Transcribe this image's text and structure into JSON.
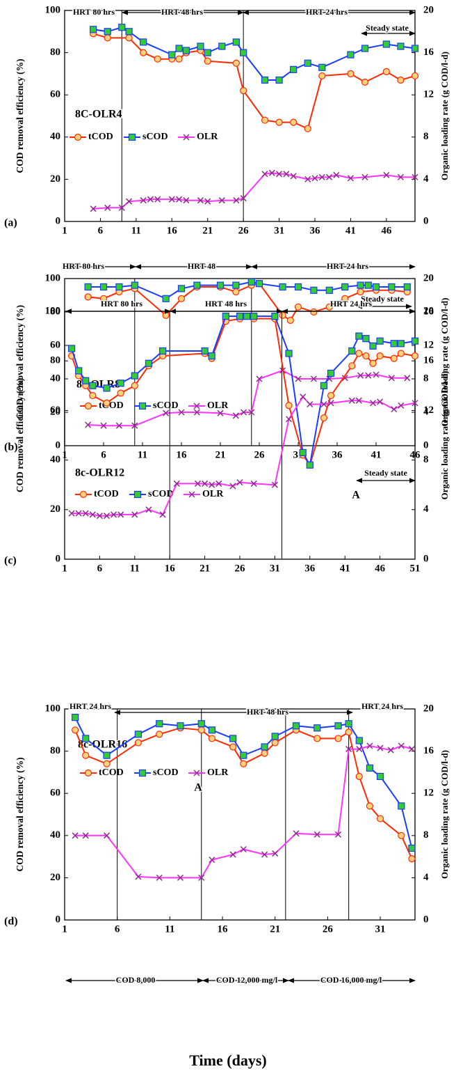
{
  "xlabel": "Time (days)",
  "chart_data": [
    {
      "type": "line",
      "panel_label": "(a)",
      "ylabel": "COD removal efficiency (%)",
      "y2label": "Organic loading rate (g COD/l-d)",
      "xlim": [
        1,
        50
      ],
      "xticks": [
        1,
        6,
        11,
        16,
        21,
        26,
        31,
        36,
        41,
        46
      ],
      "ylim": [
        0,
        100
      ],
      "yticks": [
        0,
        20,
        40,
        60,
        80,
        100
      ],
      "y2lim": [
        0,
        20
      ],
      "y2ticks": [
        0,
        4,
        8,
        12,
        16,
        20
      ],
      "vlines": [
        9,
        26
      ],
      "annotations": [
        "HRT 80 hrs",
        "HRT 48 hrs",
        "HRT 24 hrs",
        "Steady state",
        "8C-OLR4"
      ],
      "series": [
        {
          "name": "tCOD",
          "color": "#ff2a00",
          "marker": "circle",
          "x": [
            5,
            7,
            10,
            12,
            14,
            16,
            17,
            18,
            20,
            21,
            25,
            26,
            29,
            31,
            33,
            35,
            37,
            41,
            43,
            46,
            48,
            50
          ],
          "values": [
            89,
            87,
            87,
            80,
            77,
            77,
            77,
            80,
            81,
            76,
            75,
            62,
            48,
            47,
            47,
            44,
            69,
            70,
            66,
            71,
            67,
            69
          ]
        },
        {
          "name": "sCOD",
          "color": "#1a3cff",
          "marker": "square",
          "x": [
            5,
            7,
            9,
            10,
            12,
            16,
            17,
            18,
            20,
            21,
            23,
            25,
            26,
            29,
            31,
            33,
            35,
            37,
            41,
            43,
            46,
            48,
            50
          ],
          "values": [
            91,
            90,
            92,
            90,
            85,
            79,
            82,
            81,
            83,
            80,
            83,
            85,
            80,
            67,
            67,
            72,
            75,
            73,
            79,
            82,
            84,
            83,
            82
          ]
        },
        {
          "name": "OLR",
          "color": "#ff33ff",
          "marker": "x",
          "axis": "y2",
          "x": [
            5,
            7,
            9,
            10,
            12,
            13,
            14,
            16,
            17,
            18,
            20,
            21,
            23,
            25,
            26,
            29,
            30,
            31,
            32,
            33,
            35,
            36,
            37,
            38,
            39,
            41,
            43,
            46,
            48,
            50
          ],
          "values": [
            1.2,
            1.3,
            1.3,
            1.9,
            2,
            2.1,
            2.1,
            2.1,
            2.1,
            2,
            2,
            1.9,
            2,
            2,
            2.2,
            4.5,
            4.6,
            4.5,
            4.5,
            4.3,
            4,
            4.1,
            4.2,
            4.2,
            4.4,
            4.1,
            4.2,
            4.4,
            4.2,
            4.2
          ]
        }
      ]
    },
    {
      "type": "line",
      "panel_label": "(b)",
      "ylabel": "COD removal efficiency (%)",
      "y2label": "Organic loading rate (g COD/l-d)",
      "xlim": [
        1,
        46
      ],
      "xticks": [
        1,
        6,
        11,
        16,
        21,
        26,
        31,
        36,
        41,
        46
      ],
      "ylim": [
        0,
        100
      ],
      "yticks": [
        0,
        20,
        40,
        60,
        80,
        100
      ],
      "y2lim": [
        0,
        20
      ],
      "y2ticks": [
        0,
        4,
        8,
        12,
        16,
        20
      ],
      "vlines": [
        10,
        25
      ],
      "annotations": [
        "HRT 80 hrs",
        "HRT 48",
        "HRT 24 hrs",
        "Steady state",
        "8c-OLR8"
      ],
      "series": [
        {
          "name": "tCOD",
          "color": "#ff2a00",
          "marker": "circle",
          "x": [
            4,
            6,
            8,
            10,
            14,
            16,
            18,
            21,
            23,
            25,
            26,
            29,
            30,
            31,
            33,
            35,
            37,
            39,
            41,
            43,
            45
          ],
          "values": [
            89,
            88,
            92,
            94,
            78,
            88,
            95,
            95,
            92,
            96,
            97,
            78,
            75,
            83,
            80,
            83,
            88,
            92,
            93,
            93,
            92
          ]
        },
        {
          "name": "sCOD",
          "color": "#1a3cff",
          "marker": "square",
          "x": [
            4,
            6,
            8,
            10,
            14,
            16,
            18,
            21,
            23,
            25,
            26,
            29,
            31,
            33,
            35,
            37,
            39,
            40,
            41,
            43,
            45
          ],
          "values": [
            95,
            95,
            95,
            96,
            88,
            94,
            96,
            96,
            96,
            98,
            97,
            95,
            95,
            93,
            93,
            95,
            96,
            96,
            95,
            95,
            95
          ]
        },
        {
          "name": "OLR",
          "color": "#ff33ff",
          "marker": "x",
          "axis": "y2",
          "x": [
            4,
            6,
            8,
            10,
            14,
            16,
            18,
            21,
            23,
            24,
            25,
            26,
            29,
            31,
            33,
            35,
            37,
            39,
            40,
            41,
            43,
            45
          ],
          "values": [
            2.5,
            2.4,
            2.4,
            2.4,
            3.9,
            4,
            4,
            3.9,
            3.6,
            4,
            4,
            8,
            9,
            8,
            8,
            8,
            8.1,
            8.4,
            8.4,
            8.5,
            8.1,
            8.1
          ]
        }
      ]
    },
    {
      "type": "line",
      "panel_label": "(c)",
      "ylabel": "COD removal efficiency (%)",
      "y2label": "Organic loading rate (g COD/l-d)",
      "xlim": [
        1,
        51
      ],
      "xticks": [
        1,
        6,
        11,
        16,
        21,
        26,
        31,
        36,
        41,
        46,
        51
      ],
      "ylim": [
        0,
        100
      ],
      "yticks": [
        0,
        20,
        40,
        60,
        80,
        100
      ],
      "y2lim": [
        0,
        20
      ],
      "y2ticks": [
        0,
        4,
        8,
        12,
        16,
        20
      ],
      "vlines": [
        16,
        32
      ],
      "annotations": [
        "HRT 80 hrs",
        "HRT 48 hrs",
        "HRT 24 hrs",
        "Steady state",
        "8c-OLR12",
        "A"
      ],
      "series": [
        {
          "name": "tCOD",
          "color": "#ff2a00",
          "marker": "circle",
          "x": [
            2,
            3,
            4,
            5,
            7,
            9,
            11,
            13,
            15,
            21,
            22,
            24,
            26,
            28,
            31,
            33,
            35,
            36,
            38,
            39,
            42,
            43,
            44,
            45,
            46,
            48,
            49,
            51
          ],
          "values": [
            82,
            74,
            70,
            66,
            63,
            67,
            70,
            78,
            82,
            83,
            81,
            96,
            97,
            97,
            97,
            62,
            42,
            38,
            57,
            66,
            78,
            83,
            82,
            79,
            82,
            81,
            83,
            82
          ]
        },
        {
          "name": "sCOD",
          "color": "#1a3cff",
          "marker": "square",
          "x": [
            2,
            3,
            4,
            5,
            7,
            9,
            11,
            13,
            15,
            21,
            22,
            24,
            26,
            27,
            28,
            31,
            33,
            35,
            36,
            38,
            39,
            42,
            43,
            44,
            45,
            46,
            48,
            49,
            51
          ],
          "values": [
            85,
            76,
            72,
            70,
            69,
            71,
            74,
            79,
            84,
            84,
            82,
            98,
            98,
            98,
            98,
            98,
            83,
            43,
            38,
            70,
            75,
            84,
            90,
            89,
            86,
            88,
            87,
            87,
            88
          ]
        },
        {
          "name": "OLR",
          "color": "#ff33ff",
          "marker": "x",
          "axis": "y2",
          "x": [
            2,
            3,
            4,
            5,
            6,
            7,
            8,
            9,
            11,
            13,
            15,
            17,
            20,
            21,
            22,
            23,
            25,
            26,
            28,
            31,
            33,
            35,
            36,
            38,
            39,
            42,
            43,
            45,
            46,
            48,
            49,
            51
          ],
          "values": [
            3.7,
            3.7,
            3.7,
            3.6,
            3.5,
            3.5,
            3.6,
            3.6,
            3.6,
            4,
            3.6,
            6.1,
            6.1,
            6.1,
            6,
            6.1,
            5.9,
            6.2,
            6.1,
            6,
            11.3,
            13.1,
            12.5,
            12.5,
            12.6,
            12.8,
            12.8,
            12.6,
            12.7,
            12.1,
            12.4,
            12.6
          ]
        }
      ]
    },
    {
      "type": "line",
      "panel_label": "(d)",
      "ylabel": "COD removal efficiency (%)",
      "y2label": "Organic loading rate (g COD/l-d)",
      "xlim": [
        1,
        34.3
      ],
      "xticks": [
        1,
        6,
        11,
        16,
        21,
        26,
        31
      ],
      "ylim": [
        0,
        100
      ],
      "yticks": [
        0,
        20,
        40,
        60,
        80,
        100
      ],
      "y2lim": [
        0,
        20
      ],
      "y2ticks": [
        0,
        4,
        8,
        12,
        16,
        20
      ],
      "vlines": [
        6,
        14,
        22,
        28
      ],
      "annotations": [
        "HRT 24 hrs",
        "HRT 48 hrs",
        "HRT 24 hrs",
        "8c-OLR16",
        "A",
        "COD 8,000",
        "COD 12,000 mg/l",
        "COD 16,000 mg/l"
      ],
      "series": [
        {
          "name": "tCOD",
          "color": "#ff2a00",
          "marker": "circle",
          "x": [
            2,
            3,
            5,
            8,
            10,
            12,
            14,
            15,
            17,
            18,
            20,
            21,
            23,
            25,
            27,
            28,
            29,
            30,
            31,
            33,
            34
          ],
          "values": [
            90,
            78,
            74,
            84,
            88,
            91,
            90,
            86,
            82,
            74,
            79,
            84,
            90,
            86,
            86,
            89,
            68,
            54,
            48,
            40,
            29
          ]
        },
        {
          "name": "sCOD",
          "color": "#1a3cff",
          "marker": "square",
          "x": [
            2,
            3,
            5,
            8,
            10,
            12,
            14,
            15,
            17,
            18,
            20,
            21,
            23,
            25,
            27,
            28,
            29,
            30,
            31,
            33,
            34
          ],
          "values": [
            96,
            86,
            78,
            88,
            93,
            92,
            93,
            90,
            86,
            78,
            82,
            87,
            92,
            91,
            92,
            93,
            85,
            72,
            68,
            54,
            34
          ]
        },
        {
          "name": "OLR",
          "color": "#ff33ff",
          "marker": "x",
          "axis": "y2",
          "x": [
            2,
            3,
            5,
            8,
            10,
            12,
            14,
            15,
            17,
            18,
            20,
            21,
            23,
            25,
            27,
            28,
            29,
            30,
            31,
            32,
            33,
            34
          ],
          "values": [
            8,
            8,
            8,
            4.1,
            4,
            4,
            4,
            5.7,
            6.2,
            6.7,
            6.2,
            6.3,
            8.2,
            8.1,
            8.1,
            16.2,
            16.2,
            16.5,
            16.3,
            16.1,
            16.5,
            16.2
          ]
        }
      ]
    }
  ]
}
